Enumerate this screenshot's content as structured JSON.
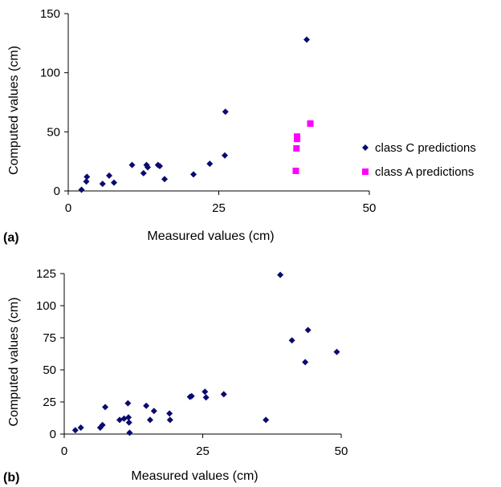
{
  "colors": {
    "class_c": "#0a0a70",
    "class_a": "#ff00ff",
    "axis": "#000000"
  },
  "chart_data": [
    {
      "type": "scatter",
      "panel_label": "(a)",
      "xlabel": "Measured values (cm)",
      "ylabel": "Computed values (cm)",
      "xlim": [
        0,
        50
      ],
      "ylim": [
        0,
        150
      ],
      "xticks": [
        0,
        25,
        50
      ],
      "yticks": [
        0,
        50,
        100,
        150
      ],
      "grid": false,
      "legend": "right",
      "series": [
        {
          "name": "class C predictions",
          "marker": "diamond",
          "color": "#0a0a70",
          "points": [
            [
              2.2,
              1
            ],
            [
              3.0,
              8
            ],
            [
              3.1,
              12
            ],
            [
              5.7,
              6
            ],
            [
              6.8,
              13
            ],
            [
              7.6,
              7
            ],
            [
              10.6,
              22
            ],
            [
              12.5,
              15
            ],
            [
              13.0,
              22
            ],
            [
              13.2,
              20
            ],
            [
              14.9,
              22
            ],
            [
              15.2,
              21
            ],
            [
              16.0,
              10
            ],
            [
              20.8,
              14
            ],
            [
              23.5,
              23
            ],
            [
              26.0,
              30
            ],
            [
              26.1,
              67
            ],
            [
              39.6,
              128
            ]
          ]
        },
        {
          "name": "class A predictions",
          "marker": "square",
          "color": "#ff00ff",
          "points": [
            [
              37.8,
              17
            ],
            [
              37.9,
              36
            ],
            [
              38.0,
              44
            ],
            [
              38.0,
              46
            ],
            [
              40.2,
              57
            ]
          ]
        }
      ]
    },
    {
      "type": "scatter",
      "panel_label": "(b)",
      "xlabel": "Measured values (cm)",
      "ylabel": "Computed values (cm)",
      "xlim": [
        0,
        50
      ],
      "ylim": [
        0,
        125
      ],
      "xticks": [
        0,
        25,
        50
      ],
      "yticks": [
        0,
        25,
        50,
        75,
        100,
        125
      ],
      "grid": false,
      "legend": "none",
      "series": [
        {
          "marker": "diamond",
          "color": "#0a0a70",
          "points": [
            [
              2.0,
              3
            ],
            [
              3.0,
              5
            ],
            [
              6.5,
              5
            ],
            [
              6.9,
              7
            ],
            [
              7.4,
              21
            ],
            [
              10.0,
              11
            ],
            [
              10.8,
              12
            ],
            [
              11.5,
              24
            ],
            [
              11.6,
              13
            ],
            [
              11.7,
              9
            ],
            [
              11.8,
              1
            ],
            [
              14.8,
              22
            ],
            [
              15.5,
              11
            ],
            [
              16.2,
              18
            ],
            [
              19.0,
              16
            ],
            [
              19.1,
              11
            ],
            [
              22.7,
              29
            ],
            [
              23.0,
              29.5
            ],
            [
              25.4,
              33
            ],
            [
              25.6,
              28.5
            ],
            [
              28.8,
              31
            ],
            [
              36.4,
              11
            ],
            [
              39.0,
              124
            ],
            [
              41.1,
              73
            ],
            [
              43.5,
              56
            ],
            [
              44.0,
              81
            ],
            [
              49.2,
              64
            ]
          ]
        }
      ]
    }
  ]
}
